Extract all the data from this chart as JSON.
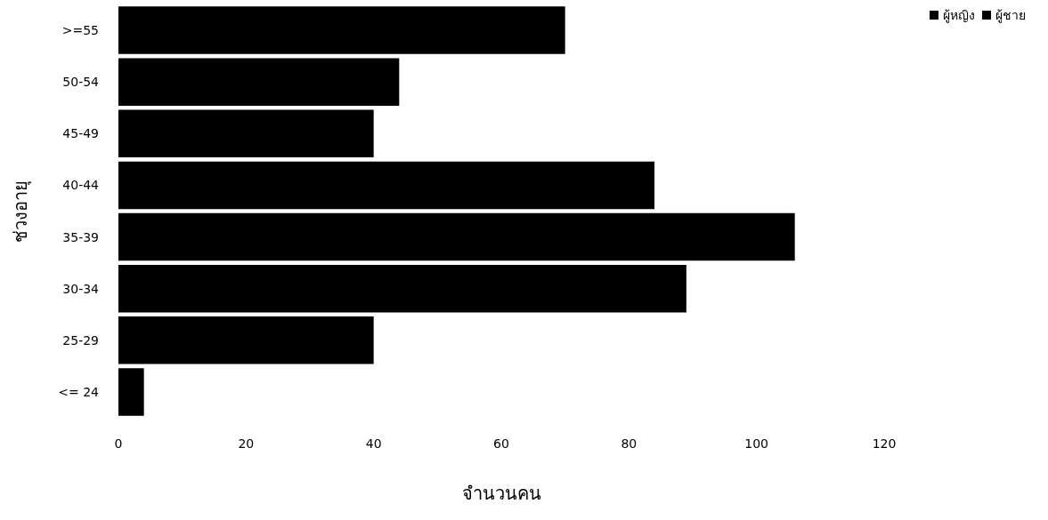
{
  "chart_data": {
    "type": "bar",
    "orientation": "horizontal",
    "xlabel": "จำนวนคน",
    "ylabel": "ช่วงอายุ",
    "categories": [
      ">=55",
      "50-54",
      "45-49",
      "40-44",
      "35-39",
      "30-34",
      "25-29",
      "<= 24"
    ],
    "series": [
      {
        "name": "ผู้หญิง",
        "color": "#000000",
        "values": [
          70,
          44,
          40,
          84,
          106,
          89,
          40,
          4
        ]
      },
      {
        "name": "ผู้ชาย",
        "color": "#000000",
        "values": [
          null,
          null,
          null,
          null,
          null,
          null,
          null,
          null
        ]
      }
    ],
    "xlim": [
      0,
      120
    ],
    "xticks": [
      0,
      20,
      40,
      60,
      80,
      100,
      120
    ],
    "grid": false,
    "legend": "top right",
    "stacked": true
  }
}
